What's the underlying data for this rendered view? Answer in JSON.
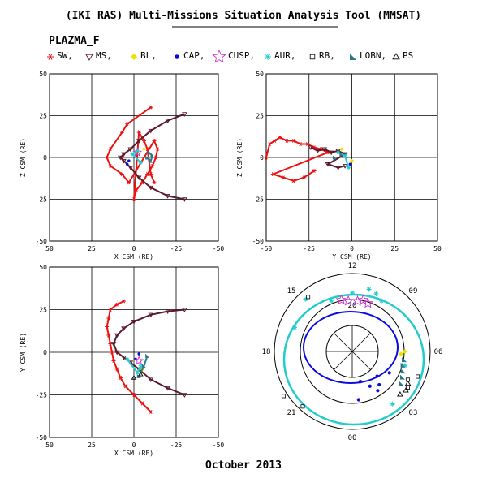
{
  "header": {
    "title": "(IKI RAS) Multi-Missions Situation Analysis Tool (MMSAT)",
    "mission": "PLAZMA_F",
    "footer": "October 2013"
  },
  "legend": [
    {
      "label": "SW,",
      "color": "#ee1111",
      "marker": "star"
    },
    {
      "label": "MS,",
      "color": "#5a1a2a",
      "marker": "tri-down"
    },
    {
      "label": "BL,",
      "color": "#f0e000",
      "marker": "diamond"
    },
    {
      "label": "CAP,",
      "color": "#0a0ae0",
      "marker": "dot"
    },
    {
      "label": "CUSP,",
      "color": "#cc33cc",
      "marker": "star5"
    },
    {
      "label": "AUR,",
      "color": "#22cccc",
      "marker": "asterisk"
    },
    {
      "label": "RB,",
      "color": "#000000",
      "marker": "square"
    },
    {
      "label": "LOBN,",
      "color": "#2a7a8a",
      "marker": "wedge"
    },
    {
      "label": "PS",
      "color": "#000000",
      "marker": "tri-up"
    }
  ],
  "chart_data": [
    {
      "type": "scatter",
      "id": "xz",
      "xlabel": "X CSM (RE)",
      "ylabel": "Z CSM (RE)",
      "xlim": [
        50,
        -50
      ],
      "ylim": [
        -50,
        50
      ],
      "xticks": [
        "50",
        "25",
        "0",
        "-25",
        "-50"
      ],
      "yticks": [
        "-50",
        "-25",
        "0",
        "25",
        "50"
      ],
      "grid": true,
      "series": [
        {
          "region": "SW",
          "x": [
            -10,
            4,
            7,
            14,
            16,
            14,
            7,
            3,
            -12,
            -14,
            -13,
            -11,
            -8,
            -5,
            -1,
            0,
            -3,
            -6,
            -8,
            -10,
            -12
          ],
          "y": [
            30,
            20,
            15,
            5,
            0,
            -5,
            -10,
            -15,
            10,
            5,
            0,
            -5,
            -10,
            -15,
            -20,
            -25,
            15,
            10,
            5,
            -10,
            -15
          ]
        },
        {
          "region": "MS",
          "x": [
            -30,
            -20,
            -10,
            -3,
            2,
            6,
            8,
            6,
            2,
            -3,
            -10,
            -20,
            -30
          ],
          "y": [
            26,
            22,
            16,
            10,
            5,
            2,
            0,
            -2,
            -6,
            -12,
            -18,
            -23,
            -25
          ]
        },
        {
          "region": "BL",
          "x": [
            -6
          ],
          "y": [
            5
          ]
        },
        {
          "region": "CAP",
          "x": [
            3,
            4
          ],
          "y": [
            -2,
            -4
          ]
        },
        {
          "region": "CUSP",
          "x": [
            -2
          ],
          "y": [
            3
          ]
        },
        {
          "region": "AUR",
          "x": [
            -2,
            1,
            -4
          ],
          "y": [
            4,
            2,
            -3
          ]
        },
        {
          "region": "LOBN",
          "x": [
            -8,
            -10,
            -11,
            -9
          ],
          "y": [
            0,
            -2,
            1,
            3
          ]
        }
      ]
    },
    {
      "type": "scatter",
      "id": "yz",
      "xlabel": "Y CSM (RE)",
      "ylabel": "Z CSM (RE)",
      "xlim": [
        -50,
        50
      ],
      "ylim": [
        -50,
        50
      ],
      "xticks": [
        "-50",
        "-25",
        "0",
        "25",
        "50"
      ],
      "yticks": [
        "-50",
        "-25",
        "0",
        "25",
        "50"
      ],
      "grid": true,
      "series": [
        {
          "region": "SW",
          "x": [
            -50,
            -48,
            -45,
            -42,
            -38,
            -34,
            -30,
            -26,
            -22,
            -18,
            -14,
            -46,
            -40,
            -34,
            -28,
            -22
          ],
          "y": [
            0,
            8,
            10,
            12,
            10,
            10,
            8,
            8,
            6,
            5,
            3,
            -10,
            -12,
            -14,
            -12,
            -8
          ]
        },
        {
          "region": "MS",
          "x": [
            -24,
            -20,
            -16,
            -12,
            -8,
            -4,
            -14,
            -8,
            -4
          ],
          "y": [
            6,
            4,
            5,
            3,
            4,
            2,
            -4,
            -6,
            -5
          ]
        },
        {
          "region": "BL",
          "x": [
            -6,
            0
          ],
          "y": [
            5,
            -2
          ]
        },
        {
          "region": "CAP",
          "x": [
            -1
          ],
          "y": [
            -4
          ]
        },
        {
          "region": "AUR",
          "x": [
            -8,
            -4,
            -2
          ],
          "y": [
            3,
            1,
            -6
          ]
        },
        {
          "region": "LOBN",
          "x": [
            -10,
            -6
          ],
          "y": [
            0,
            2
          ]
        }
      ]
    },
    {
      "type": "scatter",
      "id": "xy",
      "xlabel": "X CSM (RE)",
      "ylabel": "Y CSM (RE)",
      "xlim": [
        50,
        -50
      ],
      "ylim": [
        -50,
        50
      ],
      "xticks": [
        "50",
        "25",
        "0",
        "-25",
        "-50"
      ],
      "yticks": [
        "-50",
        "-25",
        "0",
        "25",
        "50"
      ],
      "grid": true,
      "series": [
        {
          "region": "SW",
          "x": [
            -10,
            -5,
            0,
            5,
            8,
            10,
            12,
            13,
            14,
            15,
            16,
            15,
            14,
            10,
            6
          ],
          "y": [
            -35,
            -30,
            -25,
            -20,
            -15,
            -10,
            -5,
            0,
            5,
            10,
            15,
            20,
            25,
            28,
            30
          ]
        },
        {
          "region": "MS",
          "x": [
            -30,
            -20,
            -10,
            -3,
            2,
            6,
            10,
            12,
            10,
            6,
            0,
            -10,
            -20,
            -30
          ],
          "y": [
            -25,
            -21,
            -16,
            -10,
            -6,
            -3,
            0,
            5,
            10,
            14,
            18,
            22,
            24,
            25
          ]
        },
        {
          "region": "BL",
          "x": [
            -5
          ],
          "y": [
            -10
          ]
        },
        {
          "region": "CAP",
          "x": [
            -1,
            -3
          ],
          "y": [
            -4,
            -1
          ]
        },
        {
          "region": "CUSP",
          "x": [
            -3
          ],
          "y": [
            -5
          ]
        },
        {
          "region": "AUR",
          "x": [
            -4,
            -2,
            4
          ],
          "y": [
            -8,
            -12,
            -4
          ]
        },
        {
          "region": "LOBN",
          "x": [
            -3,
            -6,
            -8
          ],
          "y": [
            -14,
            -8,
            -2
          ]
        },
        {
          "region": "PS",
          "x": [
            0,
            -4
          ],
          "y": [
            -15,
            -13
          ]
        }
      ]
    },
    {
      "type": "scatter",
      "id": "polar",
      "clock_labels": [
        "12",
        "09",
        "06",
        "03",
        "00",
        "21",
        "18",
        "15"
      ],
      "latitude_labels": [
        "20"
      ],
      "series": [
        {
          "region": "CUSP",
          "mlt": [
            10.8,
            11.2,
            11.6,
            12.3,
            12.8
          ],
          "colat": [
            26,
            27,
            26,
            26,
            27
          ]
        },
        {
          "region": "AUR",
          "mlt": [
            10,
            10.5,
            11,
            12,
            13.5,
            14.8,
            16.5,
            2.5,
            5
          ],
          "colat": [
            30,
            32,
            33,
            30,
            28,
            36,
            32,
            34,
            28
          ]
        },
        {
          "region": "CAP",
          "mlt": [
            1.8,
            2.2,
            2.6,
            3.0,
            0.5,
            1.0,
            4.0
          ],
          "colat": [
            20,
            24,
            22,
            18,
            25,
            16,
            22
          ]
        },
        {
          "region": "BL",
          "mlt": [
            5.8,
            6.0
          ],
          "colat": [
            25,
            27
          ]
        },
        {
          "region": "RB",
          "mlt": [
            14.6,
            20.2,
            21.2,
            3.8,
            4.2,
            4.6
          ],
          "colat": [
            36,
            42,
            38,
            34,
            32,
            36
          ]
        },
        {
          "region": "LOBN",
          "mlt": [
            3.8,
            4.2,
            4.6,
            5.0,
            5.4
          ],
          "colat": [
            30,
            29,
            28,
            27,
            27
          ]
        },
        {
          "region": "PS",
          "mlt": [
            3.2,
            3.6,
            4.0
          ],
          "colat": [
            33,
            34,
            33
          ]
        }
      ]
    }
  ]
}
